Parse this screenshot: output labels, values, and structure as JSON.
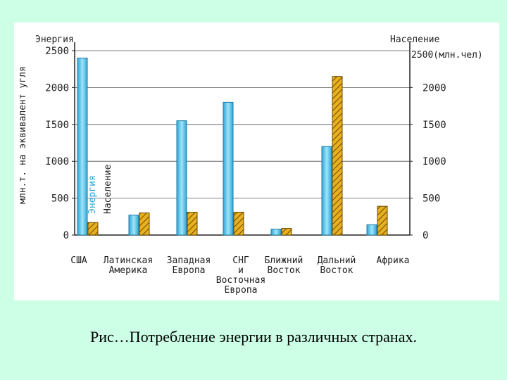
{
  "chart_data": {
    "type": "bar",
    "categories": [
      [
        "США"
      ],
      [
        "Латинская",
        "Америка"
      ],
      [
        "Западная",
        "Европа"
      ],
      [
        "СНГ",
        "и",
        "Восточная",
        "Европа"
      ],
      [
        "Ближний",
        "Восток"
      ],
      [
        "Дальний",
        "Восток"
      ],
      [
        "Африка"
      ]
    ],
    "series": [
      {
        "name": "Энергия",
        "axis": "left",
        "color": "#4fc3e6",
        "values": [
          2400,
          270,
          1550,
          1800,
          80,
          1200,
          140
        ]
      },
      {
        "name": "Население",
        "axis": "right",
        "color": "#e8b020",
        "values": [
          170,
          300,
          310,
          310,
          90,
          2150,
          390
        ]
      }
    ],
    "left_axis": {
      "title": "Энергия",
      "label": "млн.т. на эквивалент угля",
      "ticks": [
        "0",
        "500",
        "I000",
        "I500",
        "2000",
        "2500"
      ],
      "ylim": [
        0,
        2500
      ]
    },
    "right_axis": {
      "title": "Население",
      "unit": "2500(млн.чел)",
      "ticks": [
        "0",
        "500",
        "I000",
        "I500",
        "2000"
      ],
      "ylim": [
        0,
        2500
      ]
    },
    "grid": true
  },
  "caption": "Рис…Потребление энергии в различных странах."
}
